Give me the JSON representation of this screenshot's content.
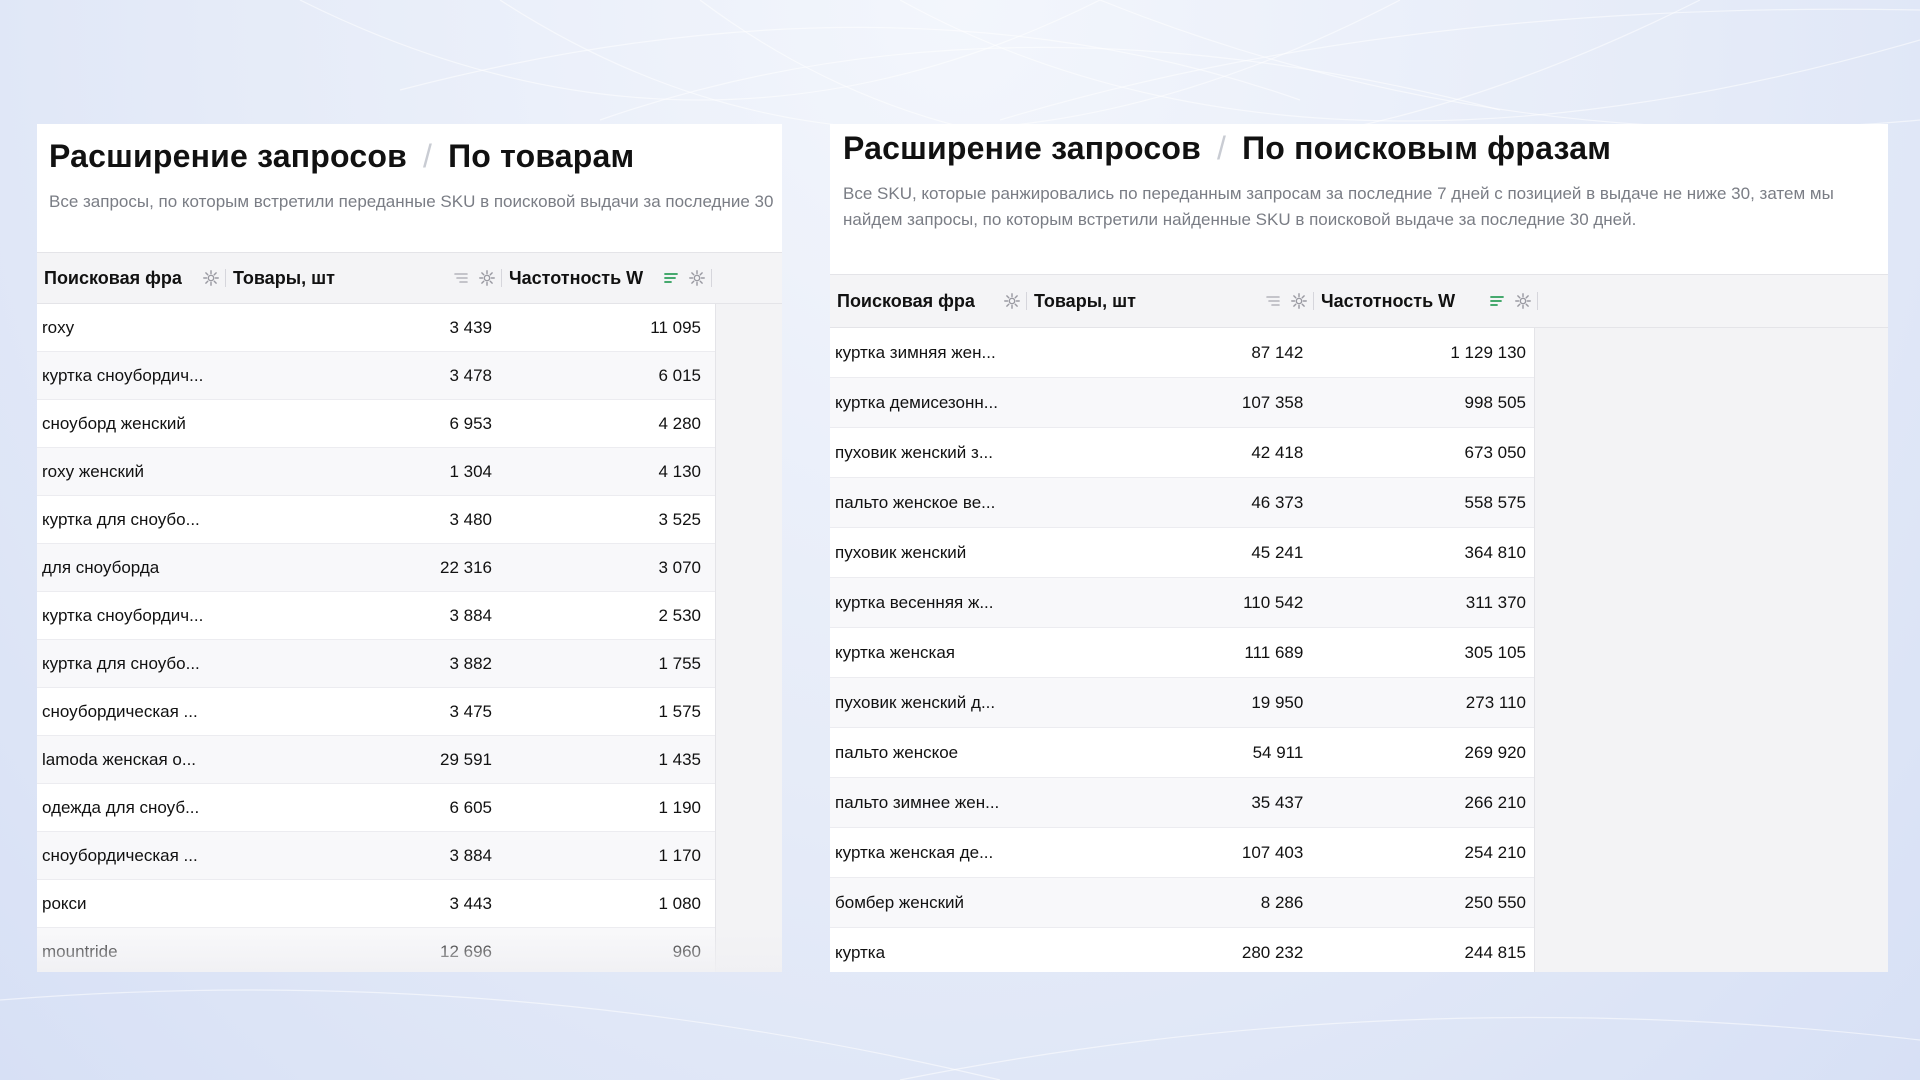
{
  "left": {
    "title": "Расширение запросов",
    "separator": "/",
    "subtitle_tab": "По товарам",
    "description": "Все запросы, по которым встретили переданные SKU в поисковой выдачи за последние 30",
    "columns": {
      "query": "Поисковая фра",
      "items": "Товары, шт",
      "frequency": "Частотность W"
    },
    "rows": [
      {
        "query": "roxy",
        "items": "3 439",
        "frequency": "11 095"
      },
      {
        "query": "куртка сноубордич...",
        "items": "3 478",
        "frequency": "6 015"
      },
      {
        "query": "сноуборд женский",
        "items": "6 953",
        "frequency": "4 280"
      },
      {
        "query": "roxy женский",
        "items": "1 304",
        "frequency": "4 130"
      },
      {
        "query": "куртка для сноубо...",
        "items": "3 480",
        "frequency": "3 525"
      },
      {
        "query": "для сноуборда",
        "items": "22 316",
        "frequency": "3 070"
      },
      {
        "query": "куртка сноубордич...",
        "items": "3 884",
        "frequency": "2 530"
      },
      {
        "query": "куртка для сноубо...",
        "items": "3 882",
        "frequency": "1 755"
      },
      {
        "query": "сноубордическая ...",
        "items": "3 475",
        "frequency": "1 575"
      },
      {
        "query": "lamoda женская о...",
        "items": "29 591",
        "frequency": "1 435"
      },
      {
        "query": "одежда для сноуб...",
        "items": "6 605",
        "frequency": "1 190"
      },
      {
        "query": "сноубордическая ...",
        "items": "3 884",
        "frequency": "1 170"
      },
      {
        "query": "рокси",
        "items": "3 443",
        "frequency": "1 080"
      },
      {
        "query": "mountride",
        "items": "12 696",
        "frequency": "960"
      }
    ]
  },
  "right": {
    "title": "Расширение запросов",
    "separator": "/",
    "subtitle_tab": "По поисковым фразам",
    "description": "Все SKU, которые ранжировались по переданным запросам за последние 7 дней с позицией в выдаче не ниже 30, затем мы найдем запросы, по которым встретили найденные SKU в поисковой выдаче за последние 30 дней.",
    "columns": {
      "query": "Поисковая фра",
      "items": "Товары, шт",
      "frequency": "Частотность W"
    },
    "rows": [
      {
        "query": "куртка зимняя жен...",
        "items": "87 142",
        "frequency": "1 129 130"
      },
      {
        "query": "куртка демисезонн...",
        "items": "107 358",
        "frequency": "998 505"
      },
      {
        "query": "пуховик женский з...",
        "items": "42 418",
        "frequency": "673 050"
      },
      {
        "query": "пальто женское ве...",
        "items": "46 373",
        "frequency": "558 575"
      },
      {
        "query": "пуховик женский",
        "items": "45 241",
        "frequency": "364 810"
      },
      {
        "query": "куртка весенняя ж...",
        "items": "110 542",
        "frequency": "311 370"
      },
      {
        "query": "куртка женская",
        "items": "111 689",
        "frequency": "305 105"
      },
      {
        "query": "пуховик женский д...",
        "items": "19 950",
        "frequency": "273 110"
      },
      {
        "query": "пальто женское",
        "items": "54 911",
        "frequency": "269 920"
      },
      {
        "query": "пальто зимнее жен...",
        "items": "35 437",
        "frequency": "266 210"
      },
      {
        "query": "куртка женская де...",
        "items": "107 403",
        "frequency": "254 210"
      },
      {
        "query": "бомбер женский",
        "items": "8 286",
        "frequency": "250 550"
      },
      {
        "query": "куртка",
        "items": "280 232",
        "frequency": "244 815"
      }
    ]
  },
  "colors": {
    "background": "#e6ecf8",
    "panel": "#ffffff",
    "header_bg": "#f4f4f6",
    "sort_active": "#2e9e5b",
    "muted_text": "#7a7d85"
  },
  "icons": {
    "settings": "gear-icon",
    "sort": "sort-icon",
    "sort_active": "sort-active-icon"
  }
}
